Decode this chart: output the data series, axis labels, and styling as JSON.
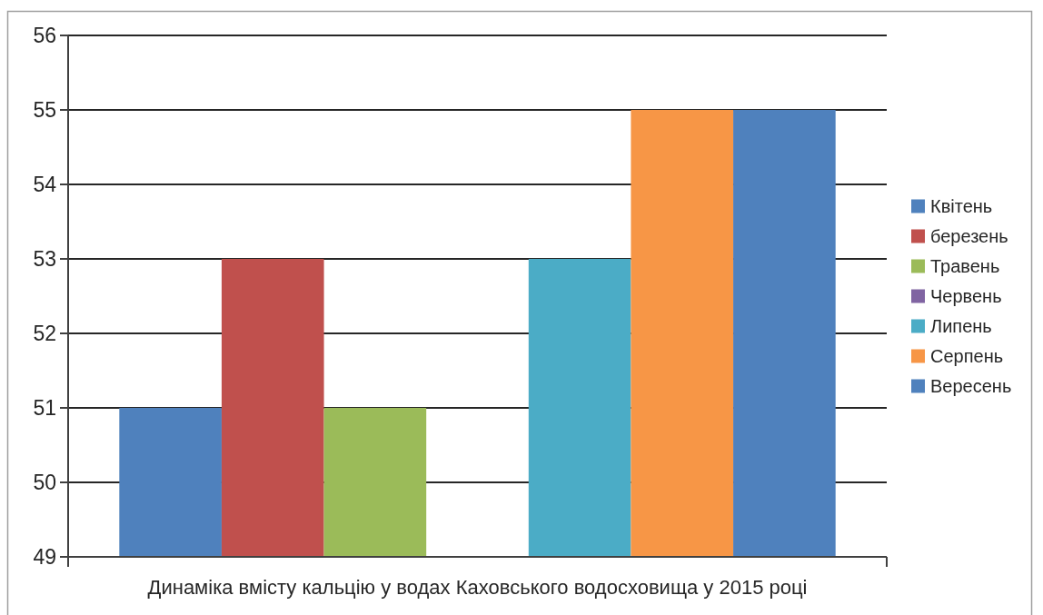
{
  "chart_data": {
    "type": "bar",
    "categories": [
      "Динаміка вмісту кальцію у водах Каховського водосховища у 2015 році"
    ],
    "series": [
      {
        "name": "Квітень",
        "color": "#4f81bd",
        "values": [
          51
        ]
      },
      {
        "name": "березень",
        "color": "#c0504d",
        "values": [
          53
        ]
      },
      {
        "name": "Травень",
        "color": "#9bbb59",
        "values": [
          51
        ]
      },
      {
        "name": "Червень",
        "color": "#8064a2",
        "values": [
          null
        ]
      },
      {
        "name": "Липень",
        "color": "#4bacc6",
        "values": [
          53
        ]
      },
      {
        "name": "Серпень",
        "color": "#f79646",
        "values": [
          55
        ]
      },
      {
        "name": "Вересень",
        "color": "#4f81bd",
        "values": [
          55
        ]
      }
    ],
    "ylim": [
      49,
      56
    ],
    "yticks": [
      49,
      50,
      51,
      52,
      53,
      54,
      55,
      56
    ],
    "grid": "y",
    "legend": "right"
  }
}
